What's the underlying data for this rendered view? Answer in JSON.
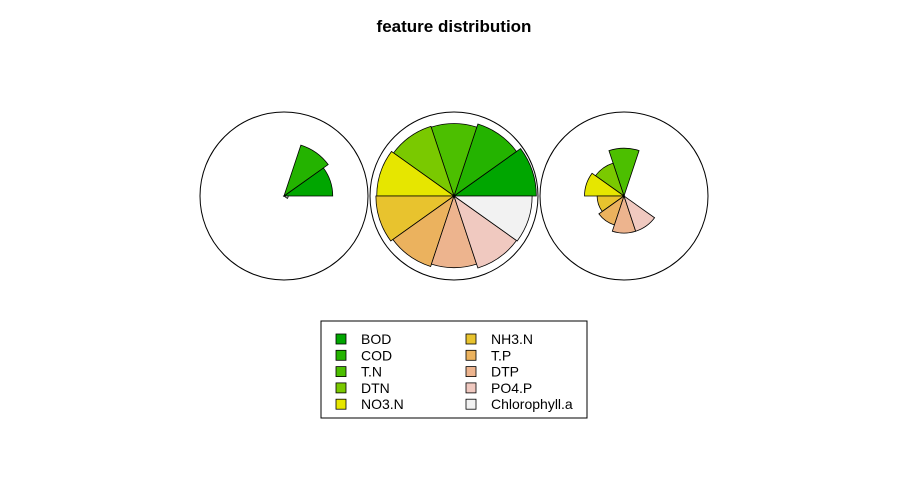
{
  "chart_data": {
    "type": "segment-star",
    "title": "feature distribution",
    "features": [
      "BOD",
      "COD",
      "T.N",
      "DTN",
      "NO3.N",
      "NH3.N",
      "T.P",
      "DTP",
      "PO4.P",
      "Chlorophyll.a"
    ],
    "colors": [
      "#00A600",
      "#24B300",
      "#4CBF00",
      "#7AC900",
      "#E6E600",
      "#E8C32E",
      "#EBB25E",
      "#EDB48E",
      "#F0C9C0",
      "#F2F2F2"
    ],
    "series": [
      {
        "values": [
          0.58,
          0.65,
          0.0,
          0.0,
          0.0,
          0.0,
          0.0,
          0.0,
          0.0,
          0.05
        ]
      },
      {
        "values": [
          0.98,
          0.92,
          0.88,
          0.89,
          0.92,
          0.93,
          0.9,
          0.87,
          0.92,
          0.93
        ]
      },
      {
        "values": [
          0.0,
          0.0,
          0.58,
          0.42,
          0.47,
          0.32,
          0.37,
          0.45,
          0.45,
          0.0
        ]
      }
    ],
    "legend": {
      "position": "bottom-center",
      "columns": 2,
      "entries": [
        "BOD",
        "COD",
        "T.N",
        "DTN",
        "NO3.N",
        "NH3.N",
        "T.P",
        "DTP",
        "PO4.P",
        "Chlorophyll.a"
      ]
    }
  }
}
